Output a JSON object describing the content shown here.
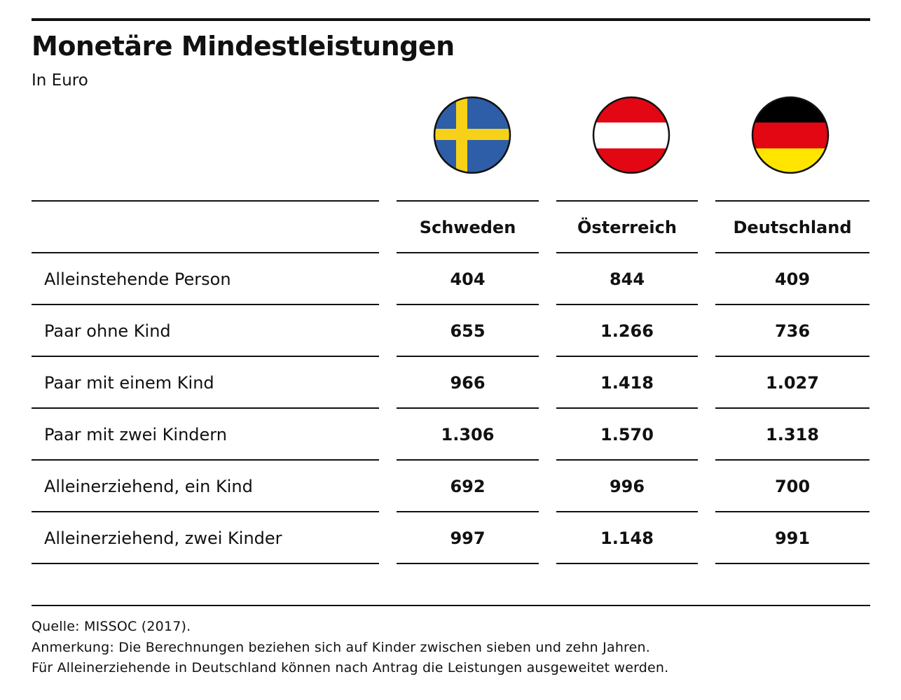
{
  "title": "Monetäre Mindestleistungen",
  "subtitle": "In Euro",
  "colors": {
    "sweden_blue": "#2e5ea8",
    "sweden_yellow": "#f7d117",
    "austria_red": "#e30613",
    "germany_black": "#000000",
    "germany_red": "#e30613",
    "germany_gold": "#ffe500"
  },
  "chart_data": {
    "type": "table",
    "columns": [
      "Schweden",
      "Österreich",
      "Deutschland"
    ],
    "flags": [
      "sweden-flag-icon",
      "austria-flag-icon",
      "germany-flag-icon"
    ],
    "rows": [
      {
        "label": "Alleinstehende Person",
        "values": [
          "404",
          "844",
          "409"
        ]
      },
      {
        "label": "Paar ohne Kind",
        "values": [
          "655",
          "1.266",
          "736"
        ]
      },
      {
        "label": "Paar mit einem Kind",
        "values": [
          "966",
          "1.418",
          "1.027"
        ]
      },
      {
        "label": "Paar mit zwei Kindern",
        "values": [
          "1.306",
          "1.570",
          "1.318"
        ]
      },
      {
        "label": "Alleinerziehend, ein Kind",
        "values": [
          "692",
          "996",
          "700"
        ]
      },
      {
        "label": "Alleinerziehend, zwei Kinder",
        "values": [
          "997",
          "1.148",
          "991"
        ]
      }
    ]
  },
  "footer": {
    "source": "Quelle: MISSOC (2017).",
    "note": "Anmerkung: Die Berechnungen beziehen sich auf Kinder zwischen sieben und zehn Jahren.",
    "note2": "Für Alleinerziehende in Deutschland können nach Antrag die Leistungen ausgeweitet werden."
  }
}
